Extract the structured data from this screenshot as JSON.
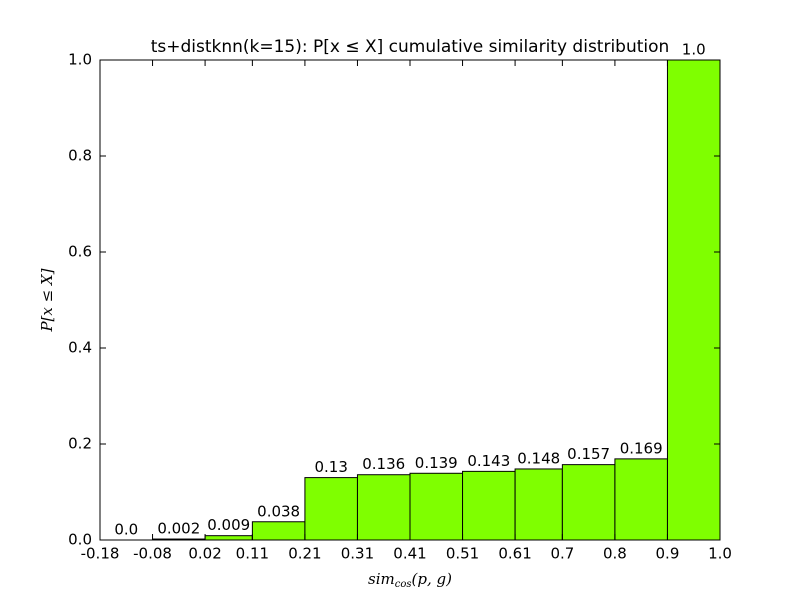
{
  "chart_data": {
    "type": "histogram",
    "title": "ts+distknn(k=15): P[x ≤ X] cumulative similarity distribution",
    "xlabel": {
      "text": "sim",
      "subscript": "cos",
      "args": "(p, g)"
    },
    "ylabel": "P[x ≤ X]",
    "bins": [
      -0.18,
      -0.08,
      0.02,
      0.11,
      0.21,
      0.31,
      0.41,
      0.51,
      0.61,
      0.7,
      0.8,
      0.9,
      1.0
    ],
    "values": [
      0,
      0.002,
      0.009,
      0.038,
      0.13,
      0.136,
      0.139,
      0.143,
      0.148,
      0.157,
      0.169,
      1.0
    ],
    "value_labels": [
      "0.0",
      "0.002",
      "0.009",
      "0.038",
      "0.13",
      "0.136",
      "0.139",
      "0.143",
      "0.148",
      "0.157",
      "0.169",
      "1.0"
    ],
    "color": "#7fff00",
    "xlim": [
      -0.18,
      1.0
    ],
    "xticks": [
      -0.18,
      -0.08,
      0.02,
      0.11,
      0.21,
      0.31,
      0.41,
      0.51,
      0.61,
      0.7,
      0.8,
      0.9,
      {
        "value": 1.0,
        "label": "1.0"
      }
    ],
    "ylim": [
      0,
      1.0
    ],
    "yticks": [
      {
        "value": 0,
        "label": "0.0"
      },
      0.2,
      0.4,
      0.6,
      0.8,
      {
        "value": 1.0,
        "label": "1.0"
      }
    ]
  }
}
